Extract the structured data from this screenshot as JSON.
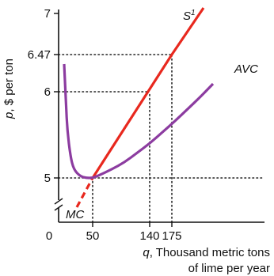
{
  "chart_data": {
    "type": "line",
    "ylabel_var": "p",
    "ylabel_rest": ", $ per ton",
    "xlabel_var": "q",
    "xlabel_rest": ", Thousand metric tons",
    "xlabel_line2": "of lime per year",
    "x_ticks": [
      {
        "value": 0,
        "label": "0"
      },
      {
        "value": 50,
        "label": "50"
      },
      {
        "value": 140,
        "label": "140"
      },
      {
        "value": 175,
        "label": "175"
      }
    ],
    "y_ticks": [
      {
        "value": 5,
        "label": "5"
      },
      {
        "value": 6,
        "label": "6"
      },
      {
        "value": 6.47,
        "label": "6.47"
      },
      {
        "value": 7,
        "label": "7"
      }
    ],
    "xlim": [
      0,
      250
    ],
    "ylim": [
      4.6,
      7.1
    ],
    "axis_break": "y",
    "grid": false,
    "reference_lines": [
      {
        "from": [
          0,
          6.47
        ],
        "to": [
          175,
          6.47
        ],
        "style": "dotted"
      },
      {
        "from": [
          0,
          6
        ],
        "to": [
          140,
          6
        ],
        "style": "dotted"
      },
      {
        "from": [
          0,
          5
        ],
        "to": [
          250,
          5
        ],
        "style": "dotted"
      },
      {
        "from": [
          50,
          4.6
        ],
        "to": [
          50,
          5
        ],
        "style": "dotted"
      },
      {
        "from": [
          140,
          4.6
        ],
        "to": [
          140,
          6
        ],
        "style": "dotted"
      },
      {
        "from": [
          175,
          4.6
        ],
        "to": [
          175,
          6.47
        ],
        "style": "dotted"
      }
    ],
    "series": [
      {
        "name": "S",
        "name_superscript": "1",
        "color": "#e8281e",
        "style": "solid",
        "x": [
          50,
          140,
          175,
          190
        ],
        "y": [
          5,
          6,
          6.47,
          6.7
        ]
      },
      {
        "name": "MC",
        "color": "#e8281e",
        "style": "dashed",
        "x": [
          25,
          50
        ],
        "y": [
          4.7,
          5
        ]
      },
      {
        "name": "AVC",
        "color": "#8c3ca0",
        "style": "solid",
        "x": [
          5,
          8,
          10,
          15,
          20,
          30,
          40,
          50,
          60,
          80,
          100,
          120,
          140,
          160,
          180,
          200,
          220,
          240
        ],
        "y": [
          6.35,
          5.85,
          5.55,
          5.25,
          5.1,
          5.02,
          5.0,
          5.0,
          5.03,
          5.1,
          5.18,
          5.29,
          5.4,
          5.53,
          5.66,
          5.8,
          5.94,
          6.1
        ]
      }
    ]
  }
}
